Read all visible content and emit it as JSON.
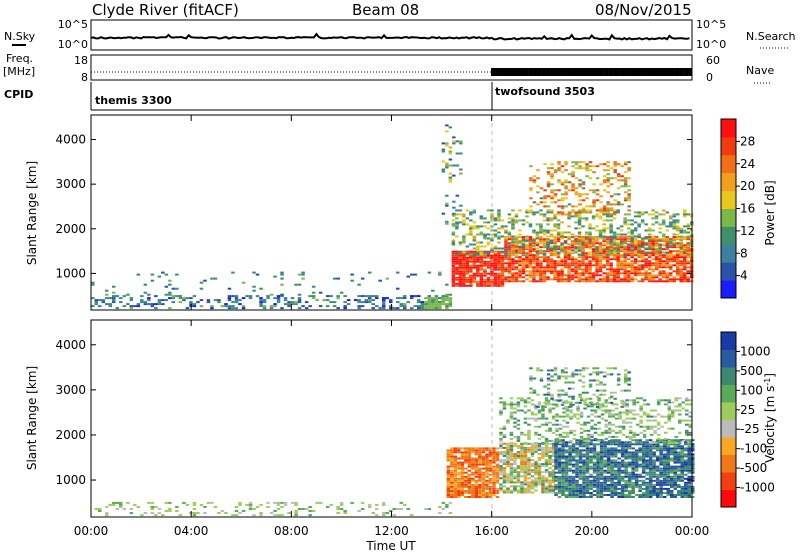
{
  "header": {
    "station": "Clyde River (fitACF)",
    "beam": "Beam 08",
    "date": "08/Nov/2015"
  },
  "nsky_panel": {
    "left_label": "N.Sky",
    "left_ticks": [
      "10^5",
      "10^0"
    ],
    "right_label": "N.Search",
    "right_ticks": [
      "10^5",
      "10^0"
    ]
  },
  "freq_panel": {
    "left_label_1": "Freq.",
    "left_label_2": "[MHz]",
    "left_ticks": [
      "18",
      "8"
    ],
    "right_label": "Nave",
    "right_ticks": [
      "60",
      "0"
    ]
  },
  "cpid_panel": {
    "label": "CPID",
    "modes": [
      {
        "name": "themis 3300",
        "start_hour": 0
      },
      {
        "name": "twofsound 3503",
        "start_hour": 16
      }
    ]
  },
  "colors": {
    "power_scale": [
      "#1a1aff",
      "#2a52a8",
      "#3d7fa0",
      "#3f8f6a",
      "#7ab84a",
      "#e8c81c",
      "#f0a01c",
      "#f07018",
      "#f03a10",
      "#ff1010"
    ],
    "velocity_scale": [
      "#ff0a0a",
      "#f04010",
      "#f07818",
      "#f8a820",
      "#bbbbbb",
      "#9ccc5a",
      "#5aaa5a",
      "#3d8870",
      "#2a5aa0",
      "#1a3aa8"
    ],
    "frame": "#000000"
  },
  "chart_data": [
    {
      "type": "heatmap",
      "name": "power",
      "ylabel": "Slant Range [km]",
      "ylim": [
        180,
        4550
      ],
      "yticks": [
        1000,
        2000,
        3000,
        4000
      ],
      "colorbar_label": "Power [dB]",
      "colorbar_ticks": [
        "4",
        "8",
        "12",
        "16",
        "20",
        "24",
        "28"
      ],
      "colorbar_range": [
        0,
        32
      ],
      "regions": [
        {
          "x": [
            0,
            14.3
          ],
          "y": [
            200,
            500
          ],
          "density": 0.35,
          "values": [
            2,
            14
          ]
        },
        {
          "x": [
            0,
            14.3
          ],
          "y": [
            500,
            1000
          ],
          "density": 0.05,
          "values": [
            4,
            14
          ]
        },
        {
          "x": [
            13.3,
            14.4
          ],
          "y": [
            200,
            450
          ],
          "density": 0.85,
          "values": [
            12,
            16
          ]
        },
        {
          "x": [
            14.4,
            16.5
          ],
          "y": [
            700,
            1500
          ],
          "density": 0.9,
          "values": [
            24,
            32
          ]
        },
        {
          "x": [
            16.5,
            24
          ],
          "y": [
            800,
            1800
          ],
          "density": 0.8,
          "values": [
            20,
            32
          ]
        },
        {
          "x": [
            14.4,
            24
          ],
          "y": [
            1400,
            2400
          ],
          "density": 0.35,
          "values": [
            8,
            20
          ]
        },
        {
          "x": [
            17.5,
            21.5
          ],
          "y": [
            2300,
            3500
          ],
          "density": 0.35,
          "values": [
            12,
            28
          ]
        },
        {
          "x": [
            14.0,
            14.8
          ],
          "y": [
            2000,
            4300
          ],
          "density": 0.15,
          "values": [
            4,
            20
          ]
        }
      ]
    },
    {
      "type": "heatmap",
      "name": "velocity",
      "xlabel": "Time UT",
      "xticks": [
        "00:00",
        "04:00",
        "08:00",
        "12:00",
        "16:00",
        "20:00",
        "00:00"
      ],
      "xlim": [
        0,
        24
      ],
      "ylabel": "Slant Range [km]",
      "ylim": [
        180,
        4550
      ],
      "yticks": [
        1000,
        2000,
        3000,
        4000
      ],
      "colorbar_label": "Velocity [m s^-1]",
      "colorbar_ticks": [
        "-1000",
        "-500",
        "-100",
        "-25",
        "25",
        "100",
        "500",
        "1000"
      ],
      "regions": [
        {
          "x": [
            0,
            14.3
          ],
          "y": [
            200,
            500
          ],
          "density": 0.2,
          "values": [
            4,
            6
          ]
        },
        {
          "x": [
            14.2,
            16.3
          ],
          "y": [
            600,
            1700
          ],
          "density": 0.85,
          "values": [
            1,
            3
          ]
        },
        {
          "x": [
            16.3,
            18.5
          ],
          "y": [
            700,
            1800
          ],
          "density": 0.8,
          "values": [
            2,
            7
          ]
        },
        {
          "x": [
            18.5,
            24
          ],
          "y": [
            600,
            1900
          ],
          "density": 0.85,
          "values": [
            6,
            9
          ]
        },
        {
          "x": [
            16.3,
            24
          ],
          "y": [
            1800,
            2800
          ],
          "density": 0.35,
          "values": [
            4,
            7
          ]
        },
        {
          "x": [
            17.5,
            21.5
          ],
          "y": [
            2600,
            3500
          ],
          "density": 0.3,
          "values": [
            4,
            8
          ]
        }
      ]
    }
  ]
}
